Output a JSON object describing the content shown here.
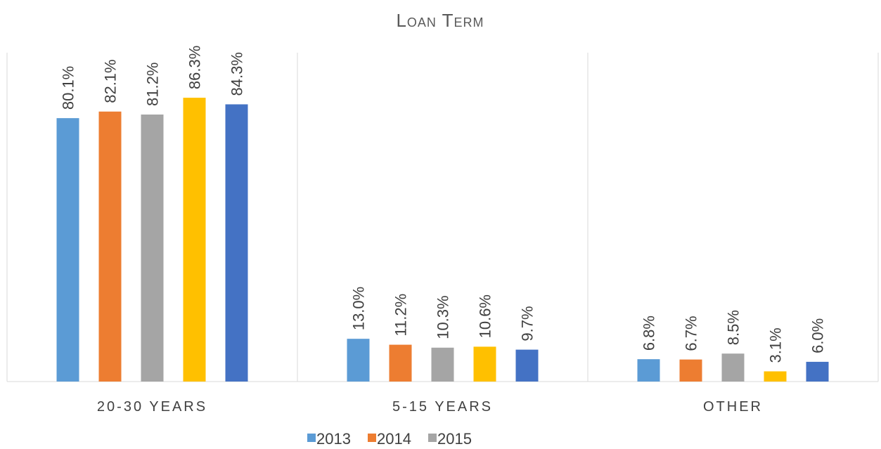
{
  "chart_data": {
    "type": "bar",
    "title": "Loan Term",
    "categories": [
      "20-30 YEARS",
      "5-15 YEARS",
      "OTHER"
    ],
    "series": [
      {
        "name": "2013",
        "color": "#5b9bd5",
        "values": [
          80.1,
          13.0,
          6.8
        ],
        "value_labels": [
          "80.1%",
          "13.0%",
          "6.8%"
        ]
      },
      {
        "name": "2014",
        "color": "#ed7d31",
        "values": [
          82.1,
          11.2,
          6.7
        ],
        "value_labels": [
          "82.1%",
          "11.2%",
          "6.7%"
        ]
      },
      {
        "name": "2015",
        "color": "#a5a5a5",
        "values": [
          81.2,
          10.3,
          8.5
        ],
        "value_labels": [
          "81.2%",
          "10.3%",
          "8.5%"
        ]
      },
      {
        "color": "#ffc000",
        "values": [
          86.3,
          10.6,
          3.1
        ],
        "value_labels": [
          "86.3%",
          "10.6%",
          "3.1%"
        ]
      },
      {
        "color": "#4472c4",
        "values": [
          84.3,
          9.7,
          6.0
        ],
        "value_labels": [
          "84.3%",
          "9.7%",
          "6.0%"
        ]
      }
    ],
    "ylim": [
      0,
      100
    ]
  }
}
